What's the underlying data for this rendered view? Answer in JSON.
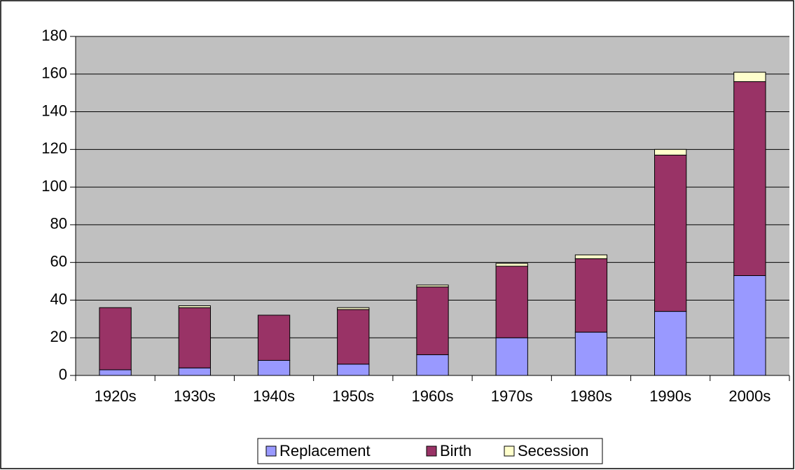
{
  "chart_data": {
    "type": "stacked_bar",
    "categories": [
      "1920s",
      "1930s",
      "1940s",
      "1950s",
      "1960s",
      "1970s",
      "1980s",
      "1990s",
      "2000s"
    ],
    "series": [
      {
        "name": "Replacement",
        "color": "#9999ff",
        "values": [
          3,
          4,
          8,
          6,
          11,
          20,
          23,
          34,
          53
        ]
      },
      {
        "name": "Birth",
        "color": "#993366",
        "values": [
          33,
          32,
          24,
          29,
          36,
          38,
          39,
          83,
          103
        ]
      },
      {
        "name": "Secession",
        "color": "#ffffcc",
        "values": [
          0,
          1,
          0,
          1,
          1,
          1.5,
          2,
          3,
          5
        ]
      }
    ],
    "ylim": [
      0,
      180
    ],
    "yticks": [
      0,
      20,
      40,
      60,
      80,
      100,
      120,
      140,
      160,
      180
    ],
    "grid": true,
    "legend": "bottom",
    "background": "#c0c0c0"
  }
}
